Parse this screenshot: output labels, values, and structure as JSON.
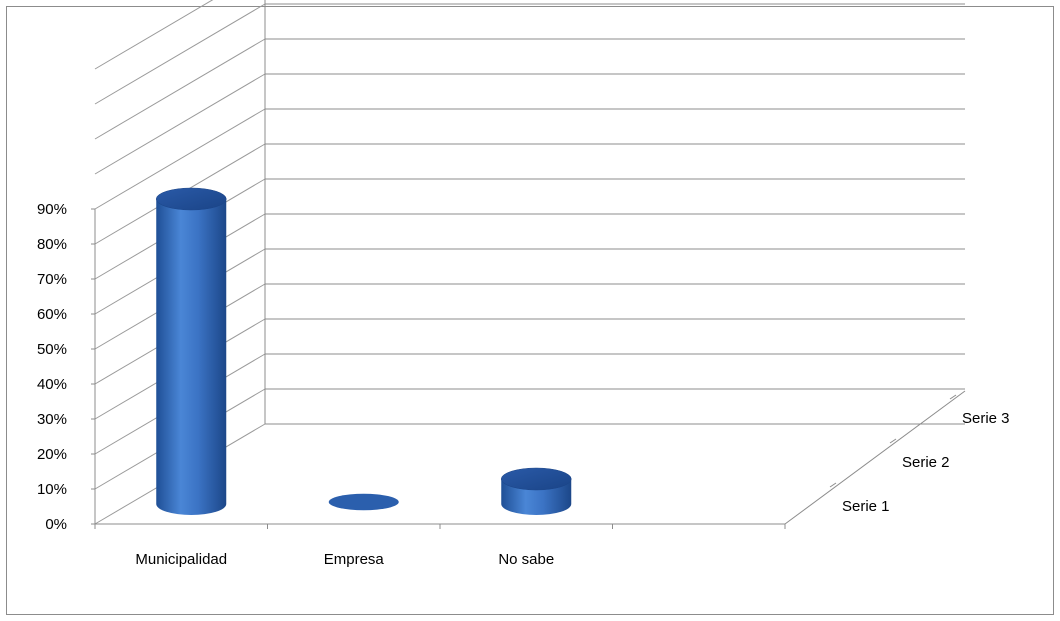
{
  "chart_data": {
    "type": "bar",
    "bar_style": "3d-cylinder",
    "categories": [
      "Municipalidad",
      "Empresa",
      "No sabe",
      ""
    ],
    "series": [
      {
        "name": "Serie 1",
        "values": [
          90,
          0,
          10,
          0
        ],
        "color": "#3b73c4"
      },
      {
        "name": "Serie 2",
        "values": [
          0,
          0,
          0,
          0
        ],
        "color": "#c0504d"
      },
      {
        "name": "Serie 3",
        "values": [
          0,
          0,
          0,
          0
        ],
        "color": "#9bbb59"
      }
    ],
    "yticks": [
      "0%",
      "10%",
      "20%",
      "30%",
      "40%",
      "50%",
      "60%",
      "70%",
      "80%",
      "90%"
    ],
    "ylim": [
      0,
      130
    ],
    "grid": true,
    "legend": "none",
    "title": "",
    "xlabel": "",
    "ylabel": ""
  }
}
